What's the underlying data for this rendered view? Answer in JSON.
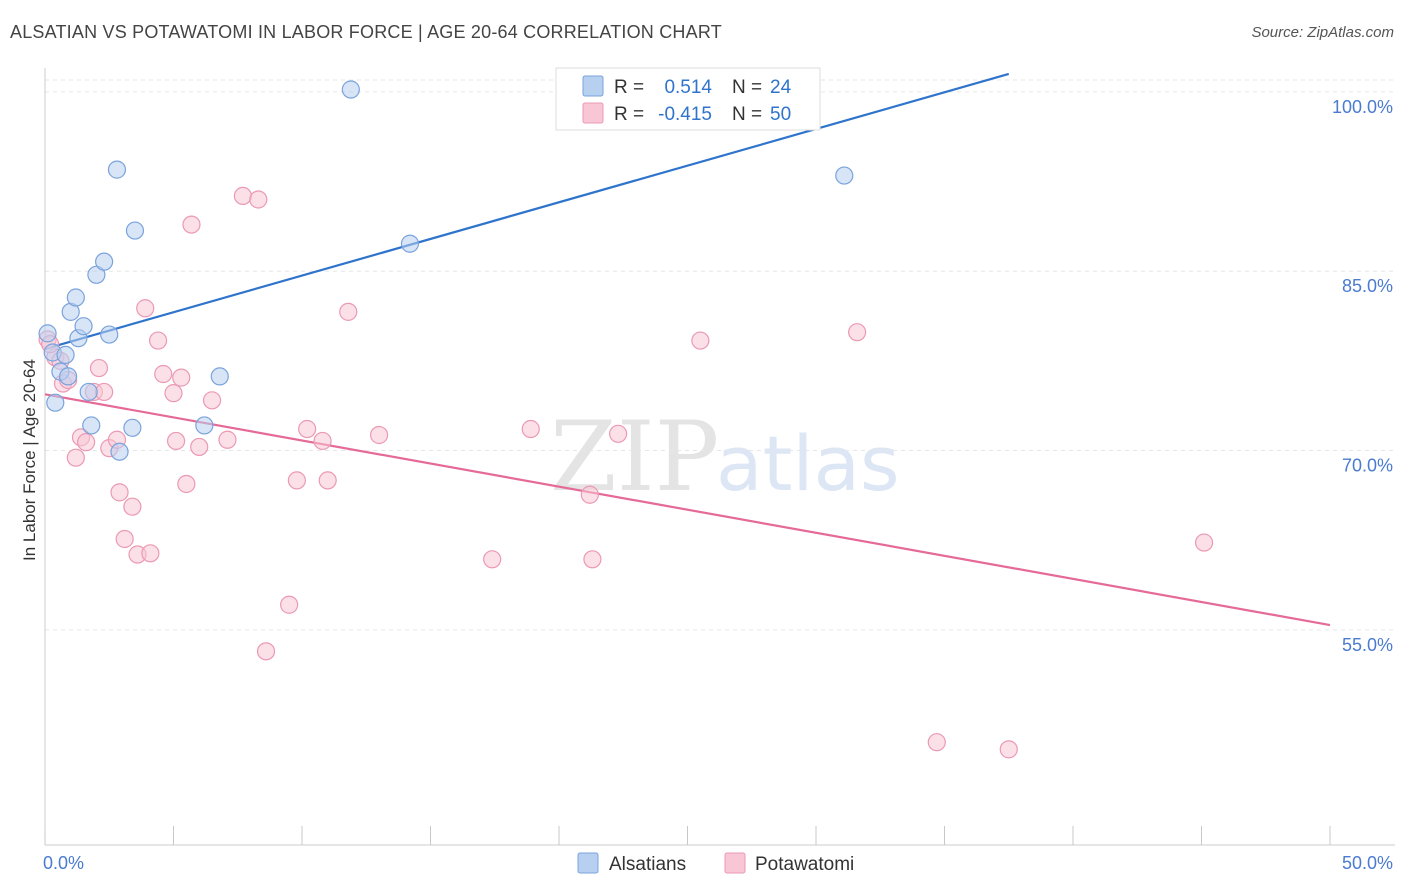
{
  "title": "ALSATIAN VS POTAWATOMI IN LABOR FORCE | AGE 20-64 CORRELATION CHART",
  "source": "Source: ZipAtlas.com",
  "watermark": {
    "zip": "ZIP",
    "atlas": "atlas"
  },
  "colors": {
    "alsatians_fill": "#b8d0f0",
    "alsatians_stroke": "#7aa3dc",
    "alsatians_line": "#2f74cc",
    "potawatomi_fill": "#f8c6d5",
    "potawatomi_stroke": "#eb99b4",
    "potawatomi_line": "#e56a97",
    "tick_text": "#4a7bd0"
  },
  "legend": {
    "rows": [
      {
        "r_label": "R =",
        "r_value": "0.514",
        "n_label": "N =",
        "n_value": "24"
      },
      {
        "r_label": "R =",
        "r_value": "-0.415",
        "n_label": "N =",
        "n_value": "50"
      }
    ]
  },
  "chart_data": {
    "type": "scatter",
    "title": "ALSATIAN VS POTAWATOMI IN LABOR FORCE | AGE 20-64 CORRELATION CHART",
    "xlabel": "",
    "ylabel": "In Labor Force | Age 20-64",
    "xlim": [
      0,
      50
    ],
    "ylim": [
      37,
      102
    ],
    "x_tick_labels": [
      "0.0%",
      "50.0%"
    ],
    "y_ticks": [
      55,
      70,
      85,
      100
    ],
    "y_tick_labels": [
      "55.0%",
      "70.0%",
      "85.0%",
      "100.0%"
    ],
    "grid": true,
    "legend_position": "bottom",
    "series": [
      {
        "name": "Alsatians",
        "r": 0.514,
        "n": 24,
        "trend": [
          [
            0,
            78.5
          ],
          [
            37.5,
            101.5
          ]
        ],
        "points": [
          [
            0.1,
            79.8
          ],
          [
            0.3,
            78.2
          ],
          [
            0.4,
            74.0
          ],
          [
            0.6,
            76.6
          ],
          [
            0.8,
            78.0
          ],
          [
            0.9,
            76.2
          ],
          [
            1.0,
            81.6
          ],
          [
            1.2,
            82.8
          ],
          [
            1.3,
            79.4
          ],
          [
            1.5,
            80.4
          ],
          [
            1.7,
            74.9
          ],
          [
            1.8,
            72.1
          ],
          [
            2.0,
            84.7
          ],
          [
            2.3,
            85.8
          ],
          [
            2.5,
            79.7
          ],
          [
            2.8,
            93.5
          ],
          [
            2.9,
            69.9
          ],
          [
            3.4,
            71.9
          ],
          [
            3.5,
            88.4
          ],
          [
            6.2,
            72.1
          ],
          [
            6.8,
            76.2
          ],
          [
            11.9,
            100.2
          ],
          [
            14.2,
            87.3
          ],
          [
            31.1,
            93.0
          ]
        ]
      },
      {
        "name": "Potawatomi",
        "r": -0.415,
        "n": 50,
        "trend": [
          [
            0,
            74.7
          ],
          [
            50,
            55.4
          ]
        ],
        "points": [
          [
            0.1,
            79.3
          ],
          [
            0.4,
            77.8
          ],
          [
            0.6,
            77.5
          ],
          [
            0.7,
            75.6
          ],
          [
            0.9,
            75.9
          ],
          [
            1.2,
            69.4
          ],
          [
            1.4,
            71.1
          ],
          [
            1.6,
            70.7
          ],
          [
            1.9,
            74.9
          ],
          [
            2.1,
            76.9
          ],
          [
            2.3,
            74.9
          ],
          [
            2.5,
            70.2
          ],
          [
            2.8,
            70.9
          ],
          [
            2.9,
            66.5
          ],
          [
            3.1,
            62.6
          ],
          [
            3.4,
            65.3
          ],
          [
            3.6,
            61.3
          ],
          [
            3.9,
            81.9
          ],
          [
            4.1,
            61.4
          ],
          [
            4.4,
            79.2
          ],
          [
            4.6,
            76.4
          ],
          [
            5.0,
            74.8
          ],
          [
            5.1,
            70.8
          ],
          [
            5.3,
            76.1
          ],
          [
            5.5,
            67.2
          ],
          [
            5.7,
            88.9
          ],
          [
            6.0,
            70.3
          ],
          [
            6.5,
            74.2
          ],
          [
            7.1,
            70.9
          ],
          [
            7.7,
            91.3
          ],
          [
            8.3,
            91.0
          ],
          [
            8.6,
            53.2
          ],
          [
            9.5,
            57.1
          ],
          [
            9.8,
            67.5
          ],
          [
            10.2,
            71.8
          ],
          [
            10.8,
            70.8
          ],
          [
            11.0,
            67.5
          ],
          [
            11.8,
            81.6
          ],
          [
            13.0,
            71.3
          ],
          [
            17.4,
            60.9
          ],
          [
            18.9,
            71.8
          ],
          [
            21.2,
            66.3
          ],
          [
            21.3,
            60.9
          ],
          [
            22.3,
            71.4
          ],
          [
            25.5,
            79.2
          ],
          [
            31.6,
            79.9
          ],
          [
            34.7,
            45.6
          ],
          [
            37.5,
            45.0
          ],
          [
            45.1,
            62.3
          ],
          [
            0.2,
            78.9
          ]
        ]
      }
    ]
  }
}
